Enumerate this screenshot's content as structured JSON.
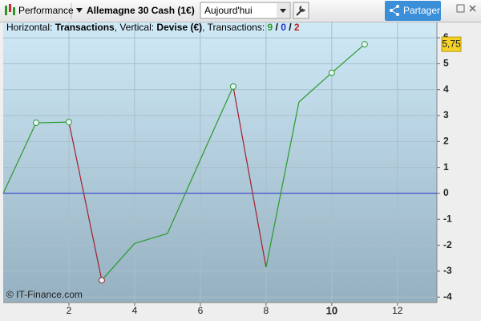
{
  "toolbar": {
    "app": "Performance",
    "instrument": "Allemagne 30 Cash (1€)",
    "period": "Aujourd'hui",
    "share": "Partager"
  },
  "info": {
    "h_label": "Horizontal: ",
    "h_value": "Transactions",
    "v_label": ", Vertical: ",
    "v_value": "Devise (€)",
    "t_label": ", Transactions: ",
    "transactions": [
      9,
      0,
      2
    ],
    "separator": " / "
  },
  "copyright": "© IT-Finance.com",
  "chart_data": {
    "type": "line",
    "x": [
      0,
      1,
      2,
      3,
      4,
      5,
      6,
      7,
      8,
      9,
      10,
      11
    ],
    "values": [
      0,
      2.72,
      2.75,
      -3.35,
      -1.93,
      -1.55,
      1.3,
      4.12,
      -2.85,
      3.52,
      4.65,
      5.75
    ],
    "marker_colors": [
      null,
      "#2a9a2a",
      "#2a9a2a",
      "#a02030",
      null,
      null,
      null,
      "#2a9a2a",
      null,
      null,
      "#2a9a2a",
      "#2a9a2a"
    ],
    "up_color": "#2a9a2a",
    "down_color": "#a02030",
    "zero_color": "#2233cc",
    "last_value_label": "5,75",
    "xlim": [
      0,
      13.2
    ],
    "ylim": [
      -4.21,
      6.59
    ],
    "xticks": [
      2,
      4,
      6,
      8,
      10,
      12
    ],
    "highlight_xtick": 10,
    "yticks": [
      -4,
      -3,
      -2,
      -1,
      0,
      1,
      2,
      3,
      4,
      5,
      6
    ],
    "grid": true
  }
}
